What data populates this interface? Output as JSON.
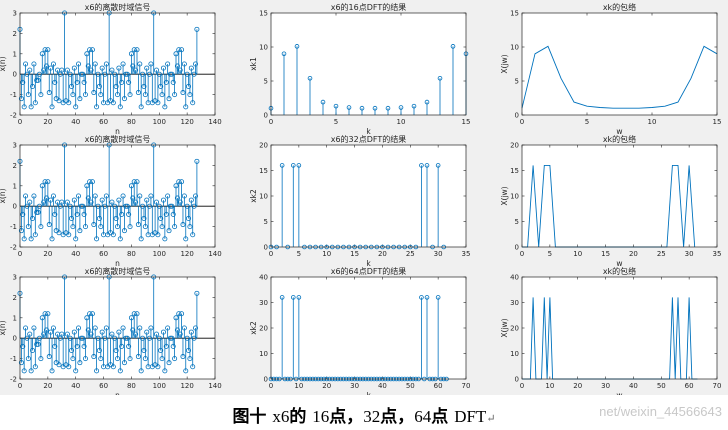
{
  "caption": {
    "lead": "图十",
    "signal": "x6",
    "particle": "的",
    "n1": "16",
    "u1": "点，",
    "n2": "32",
    "u2": "点，",
    "n3": "64",
    "u3": "点",
    "tail": "DFT",
    "return_mark": "↵"
  },
  "watermark": "net/weixin_44566643",
  "colors": {
    "stem": "#0072bd",
    "axes": "#262626",
    "figure_bg": "#f0f0f0"
  },
  "chart_data": [
    {
      "id": "sig1",
      "type": "stem",
      "title": "x6的离散时域信号",
      "xlabel": "n",
      "ylabel": "x(n)",
      "xlim": [
        0,
        140
      ],
      "ylim": [
        -2,
        3
      ],
      "xticks": [
        0,
        20,
        40,
        60,
        80,
        100,
        120,
        140
      ],
      "yticks": [
        -2,
        -1,
        0,
        1,
        2,
        3
      ],
      "x": [
        0,
        1,
        2,
        3,
        4,
        5,
        6,
        7,
        8,
        9,
        10,
        11,
        12,
        13,
        14,
        15,
        16,
        17,
        18,
        19,
        20,
        21,
        22,
        23,
        24,
        25,
        26,
        27,
        28,
        29,
        30,
        31,
        32,
        33,
        34,
        35,
        36,
        37,
        38,
        39,
        40,
        41,
        42,
        43,
        44,
        45,
        46,
        47,
        48,
        49,
        50,
        51,
        52,
        53,
        54,
        55,
        56,
        57,
        58,
        59,
        60,
        61,
        62,
        63,
        64,
        65,
        66,
        67,
        68,
        69,
        70,
        71,
        72,
        73,
        74,
        75,
        76,
        77,
        78,
        79,
        80,
        81,
        82,
        83,
        84,
        85,
        86,
        87,
        88,
        89,
        90,
        91,
        92,
        93,
        94,
        95,
        96,
        97,
        98,
        99,
        100,
        101,
        102,
        103,
        104,
        105,
        106,
        107,
        108,
        109,
        110,
        111,
        112,
        113,
        114,
        115,
        116,
        117,
        118,
        119,
        120,
        121,
        122,
        123,
        124,
        125,
        126,
        127
      ],
      "y": [
        2.2,
        -1.2,
        -0.4,
        -1.6,
        0.5,
        0.0,
        -1.0,
        0.2,
        -1.6,
        -0.6,
        0.5,
        -1.4,
        -0.3,
        -0.3,
        0.0,
        -1.0,
        1.0,
        0.2,
        1.2,
        0.4,
        1.2,
        -0.9,
        0.3,
        -1.6,
        0.5,
        -0.4,
        -1.2,
        0.2,
        -1.3,
        0.0,
        0.2,
        -1.4,
        3.0,
        -1.3,
        0.2,
        -1.4,
        0.0,
        -0.6,
        -1.0,
        0.3,
        -1.6,
        -0.4,
        0.5,
        -1.2,
        0.0,
        0.0,
        -0.4,
        -1.0,
        1.0,
        0.4,
        1.2,
        0.2,
        1.2,
        -0.9,
        0.5,
        -1.6,
        0.0,
        -0.6,
        -1.0,
        0.3,
        -1.4,
        0.0,
        0.5,
        -1.4,
        3.0,
        -1.3,
        0.2,
        -1.4,
        0.0,
        -0.6,
        -1.0,
        0.3,
        -1.6,
        -0.4,
        0.5,
        -1.2,
        0.0,
        0.0,
        -0.4,
        -1.0,
        1.0,
        0.4,
        1.2,
        0.2,
        1.2,
        -0.9,
        0.5,
        -1.6,
        0.0,
        -0.6,
        -1.0,
        0.3,
        -1.4,
        0.0,
        0.5,
        -1.4,
        3.0,
        -1.3,
        0.2,
        -1.4,
        0.0,
        -0.6,
        -1.0,
        0.3,
        -1.6,
        -0.4,
        0.5,
        -1.2,
        0.0,
        0.0,
        -0.4,
        -1.0,
        1.0,
        0.4,
        1.2,
        0.2,
        1.2,
        -0.9,
        0.5,
        -1.6,
        0.0,
        -0.6,
        -1.0,
        0.3,
        -1.4,
        0.0,
        0.5,
        2.2
      ]
    },
    {
      "id": "dft16",
      "type": "stem",
      "title": "x6的16点DFT的结果",
      "xlabel": "k",
      "ylabel": "xk1",
      "xlim": [
        0,
        15
      ],
      "ylim": [
        0,
        15
      ],
      "xticks": [
        0,
        5,
        10,
        15
      ],
      "yticks": [
        0,
        5,
        10,
        15
      ],
      "x": [
        0,
        1,
        2,
        3,
        4,
        5,
        6,
        7,
        8,
        9,
        10,
        11,
        12,
        13,
        14,
        15
      ],
      "y": [
        1.0,
        9.0,
        10.1,
        5.4,
        1.9,
        1.3,
        1.1,
        1.0,
        1.0,
        1.0,
        1.1,
        1.3,
        1.9,
        5.4,
        10.1,
        9.0
      ]
    },
    {
      "id": "env16",
      "type": "line",
      "title": "xk的包络",
      "xlabel": "w",
      "ylabel": "X(jw)",
      "xlim": [
        0,
        15
      ],
      "ylim": [
        0,
        15
      ],
      "xticks": [
        0,
        5,
        10,
        15
      ],
      "yticks": [
        0,
        5,
        10,
        15
      ],
      "x": [
        0,
        1,
        2,
        3,
        4,
        5,
        6,
        7,
        8,
        9,
        10,
        11,
        12,
        13,
        14,
        15
      ],
      "y": [
        1.0,
        9.0,
        10.1,
        5.4,
        1.9,
        1.3,
        1.1,
        1.0,
        1.0,
        1.0,
        1.1,
        1.3,
        1.9,
        5.4,
        10.1,
        9.0
      ]
    },
    {
      "id": "sig2",
      "type": "stem",
      "title": "x6的离散时域信号",
      "xlabel": "n",
      "ylabel": "x(n)",
      "xlim": [
        0,
        140
      ],
      "ylim": [
        -2,
        3
      ],
      "xticks": [
        0,
        20,
        40,
        60,
        80,
        100,
        120,
        140
      ],
      "yticks": [
        -2,
        -1,
        0,
        1,
        2,
        3
      ],
      "x": [
        0,
        1,
        2,
        3,
        4,
        5,
        6,
        7,
        8,
        9,
        10,
        11,
        12,
        13,
        14,
        15,
        16,
        17,
        18,
        19,
        20,
        21,
        22,
        23,
        24,
        25,
        26,
        27,
        28,
        29,
        30,
        31,
        32,
        33,
        34,
        35,
        36,
        37,
        38,
        39,
        40,
        41,
        42,
        43,
        44,
        45,
        46,
        47,
        48,
        49,
        50,
        51,
        52,
        53,
        54,
        55,
        56,
        57,
        58,
        59,
        60,
        61,
        62,
        63,
        64,
        65,
        66,
        67,
        68,
        69,
        70,
        71,
        72,
        73,
        74,
        75,
        76,
        77,
        78,
        79,
        80,
        81,
        82,
        83,
        84,
        85,
        86,
        87,
        88,
        89,
        90,
        91,
        92,
        93,
        94,
        95,
        96,
        97,
        98,
        99,
        100,
        101,
        102,
        103,
        104,
        105,
        106,
        107,
        108,
        109,
        110,
        111,
        112,
        113,
        114,
        115,
        116,
        117,
        118,
        119,
        120,
        121,
        122,
        123,
        124,
        125,
        126,
        127
      ],
      "y": [
        2.2,
        -1.2,
        -0.4,
        -1.6,
        0.5,
        0.0,
        -1.0,
        0.2,
        -1.6,
        -0.6,
        0.5,
        -1.4,
        -0.3,
        -0.3,
        0.0,
        -1.0,
        1.0,
        0.2,
        1.2,
        0.4,
        1.2,
        -0.9,
        0.3,
        -1.6,
        0.5,
        -0.4,
        -1.2,
        0.2,
        -1.3,
        0.0,
        0.2,
        -1.4,
        3.0,
        -1.3,
        0.2,
        -1.4,
        0.0,
        -0.6,
        -1.0,
        0.3,
        -1.6,
        -0.4,
        0.5,
        -1.2,
        0.0,
        0.0,
        -0.4,
        -1.0,
        1.0,
        0.4,
        1.2,
        0.2,
        1.2,
        -0.9,
        0.5,
        -1.6,
        0.0,
        -0.6,
        -1.0,
        0.3,
        -1.4,
        0.0,
        0.5,
        -1.4,
        3.0,
        -1.3,
        0.2,
        -1.4,
        0.0,
        -0.6,
        -1.0,
        0.3,
        -1.6,
        -0.4,
        0.5,
        -1.2,
        0.0,
        0.0,
        -0.4,
        -1.0,
        1.0,
        0.4,
        1.2,
        0.2,
        1.2,
        -0.9,
        0.5,
        -1.6,
        0.0,
        -0.6,
        -1.0,
        0.3,
        -1.4,
        0.0,
        0.5,
        -1.4,
        3.0,
        -1.3,
        0.2,
        -1.4,
        0.0,
        -0.6,
        -1.0,
        0.3,
        -1.6,
        -0.4,
        0.5,
        -1.2,
        0.0,
        0.0,
        -0.4,
        -1.0,
        1.0,
        0.4,
        1.2,
        0.2,
        1.2,
        -0.9,
        0.5,
        -1.6,
        0.0,
        -0.6,
        -1.0,
        0.3,
        -1.4,
        0.0,
        0.5,
        2.2
      ]
    },
    {
      "id": "dft32",
      "type": "stem",
      "title": "x6的32点DFT的结果",
      "xlabel": "k",
      "ylabel": "xk2",
      "xlim": [
        0,
        35
      ],
      "ylim": [
        0,
        20
      ],
      "xticks": [
        0,
        5,
        10,
        15,
        20,
        25,
        30,
        35
      ],
      "yticks": [
        0,
        5,
        10,
        15,
        20
      ],
      "x": [
        0,
        1,
        2,
        3,
        4,
        5,
        6,
        7,
        8,
        9,
        10,
        11,
        12,
        13,
        14,
        15,
        16,
        17,
        18,
        19,
        20,
        21,
        22,
        23,
        24,
        25,
        26,
        27,
        28,
        29,
        30,
        31
      ],
      "y": [
        0,
        0,
        16,
        0,
        16,
        16,
        0,
        0,
        0,
        0,
        0,
        0,
        0,
        0,
        0,
        0,
        0,
        0,
        0,
        0,
        0,
        0,
        0,
        0,
        0,
        0,
        0,
        16,
        16,
        0,
        16,
        0
      ]
    },
    {
      "id": "env32",
      "type": "line",
      "title": "xk的包络",
      "xlabel": "w",
      "ylabel": "X(jw)",
      "xlim": [
        0,
        35
      ],
      "ylim": [
        0,
        20
      ],
      "xticks": [
        0,
        5,
        10,
        15,
        20,
        25,
        30,
        35
      ],
      "yticks": [
        0,
        5,
        10,
        15,
        20
      ],
      "x": [
        0,
        1,
        2,
        3,
        4,
        5,
        6,
        7,
        8,
        9,
        10,
        11,
        12,
        13,
        14,
        15,
        16,
        17,
        18,
        19,
        20,
        21,
        22,
        23,
        24,
        25,
        26,
        27,
        28,
        29,
        30,
        31
      ],
      "y": [
        0,
        0,
        16,
        0,
        16,
        16,
        0,
        0,
        0,
        0,
        0,
        0,
        0,
        0,
        0,
        0,
        0,
        0,
        0,
        0,
        0,
        0,
        0,
        0,
        0,
        0,
        0,
        16,
        16,
        0,
        16,
        0
      ]
    },
    {
      "id": "sig3",
      "type": "stem",
      "title": "x6的离散时域信号",
      "xlabel": "n",
      "ylabel": "x(n)",
      "xlim": [
        0,
        140
      ],
      "ylim": [
        -2,
        3
      ],
      "xticks": [
        0,
        20,
        40,
        60,
        80,
        100,
        120,
        140
      ],
      "yticks": [
        -2,
        -1,
        0,
        1,
        2,
        3
      ],
      "x": [
        0,
        1,
        2,
        3,
        4,
        5,
        6,
        7,
        8,
        9,
        10,
        11,
        12,
        13,
        14,
        15,
        16,
        17,
        18,
        19,
        20,
        21,
        22,
        23,
        24,
        25,
        26,
        27,
        28,
        29,
        30,
        31,
        32,
        33,
        34,
        35,
        36,
        37,
        38,
        39,
        40,
        41,
        42,
        43,
        44,
        45,
        46,
        47,
        48,
        49,
        50,
        51,
        52,
        53,
        54,
        55,
        56,
        57,
        58,
        59,
        60,
        61,
        62,
        63,
        64,
        65,
        66,
        67,
        68,
        69,
        70,
        71,
        72,
        73,
        74,
        75,
        76,
        77,
        78,
        79,
        80,
        81,
        82,
        83,
        84,
        85,
        86,
        87,
        88,
        89,
        90,
        91,
        92,
        93,
        94,
        95,
        96,
        97,
        98,
        99,
        100,
        101,
        102,
        103,
        104,
        105,
        106,
        107,
        108,
        109,
        110,
        111,
        112,
        113,
        114,
        115,
        116,
        117,
        118,
        119,
        120,
        121,
        122,
        123,
        124,
        125,
        126,
        127
      ],
      "y": [
        2.2,
        -1.2,
        -0.4,
        -1.6,
        0.5,
        0.0,
        -1.0,
        0.2,
        -1.6,
        -0.6,
        0.5,
        -1.4,
        -0.3,
        -0.3,
        0.0,
        -1.0,
        1.0,
        0.2,
        1.2,
        0.4,
        1.2,
        -0.9,
        0.3,
        -1.6,
        0.5,
        -0.4,
        -1.2,
        0.2,
        -1.3,
        0.0,
        0.2,
        -1.4,
        3.0,
        -1.3,
        0.2,
        -1.4,
        0.0,
        -0.6,
        -1.0,
        0.3,
        -1.6,
        -0.4,
        0.5,
        -1.2,
        0.0,
        0.0,
        -0.4,
        -1.0,
        1.0,
        0.4,
        1.2,
        0.2,
        1.2,
        -0.9,
        0.5,
        -1.6,
        0.0,
        -0.6,
        -1.0,
        0.3,
        -1.4,
        0.0,
        0.5,
        -1.4,
        3.0,
        -1.3,
        0.2,
        -1.4,
        0.0,
        -0.6,
        -1.0,
        0.3,
        -1.6,
        -0.4,
        0.5,
        -1.2,
        0.0,
        0.0,
        -0.4,
        -1.0,
        1.0,
        0.4,
        1.2,
        0.2,
        1.2,
        -0.9,
        0.5,
        -1.6,
        0.0,
        -0.6,
        -1.0,
        0.3,
        -1.4,
        0.0,
        0.5,
        -1.4,
        3.0,
        -1.3,
        0.2,
        -1.4,
        0.0,
        -0.6,
        -1.0,
        0.3,
        -1.6,
        -0.4,
        0.5,
        -1.2,
        0.0,
        0.0,
        -0.4,
        -1.0,
        1.0,
        0.4,
        1.2,
        0.2,
        1.2,
        -0.9,
        0.5,
        -1.6,
        0.0,
        -0.6,
        -1.0,
        0.3,
        -1.4,
        0.0,
        0.5,
        2.2
      ]
    },
    {
      "id": "dft64",
      "type": "stem",
      "title": "x6的64点DFT的结果",
      "xlabel": "k",
      "ylabel": "xk2",
      "xlim": [
        0,
        70
      ],
      "ylim": [
        0,
        40
      ],
      "xticks": [
        0,
        10,
        20,
        30,
        40,
        50,
        60,
        70
      ],
      "yticks": [
        0,
        10,
        20,
        30,
        40
      ],
      "x": [
        0,
        1,
        2,
        3,
        4,
        5,
        6,
        7,
        8,
        9,
        10,
        11,
        12,
        13,
        14,
        15,
        16,
        17,
        18,
        19,
        20,
        21,
        22,
        23,
        24,
        25,
        26,
        27,
        28,
        29,
        30,
        31,
        32,
        33,
        34,
        35,
        36,
        37,
        38,
        39,
        40,
        41,
        42,
        43,
        44,
        45,
        46,
        47,
        48,
        49,
        50,
        51,
        52,
        53,
        54,
        55,
        56,
        57,
        58,
        59,
        60,
        61,
        62,
        63
      ],
      "y": [
        0,
        0,
        0,
        0,
        32,
        0,
        0,
        0,
        32,
        0,
        32,
        0,
        0,
        0,
        0,
        0,
        0,
        0,
        0,
        0,
        0,
        0,
        0,
        0,
        0,
        0,
        0,
        0,
        0,
        0,
        0,
        0,
        0,
        0,
        0,
        0,
        0,
        0,
        0,
        0,
        0,
        0,
        0,
        0,
        0,
        0,
        0,
        0,
        0,
        0,
        0,
        0,
        0,
        0,
        32,
        0,
        32,
        0,
        0,
        0,
        32,
        0,
        0,
        0
      ]
    },
    {
      "id": "env64",
      "type": "line",
      "title": "xk的包络",
      "xlabel": "w",
      "ylabel": "X(jw)",
      "xlim": [
        0,
        70
      ],
      "ylim": [
        0,
        40
      ],
      "xticks": [
        0,
        10,
        20,
        30,
        40,
        50,
        60,
        70
      ],
      "yticks": [
        0,
        10,
        20,
        30,
        40
      ],
      "x": [
        0,
        1,
        2,
        3,
        4,
        5,
        6,
        7,
        8,
        9,
        10,
        11,
        12,
        13,
        14,
        15,
        16,
        17,
        18,
        19,
        20,
        21,
        22,
        23,
        24,
        25,
        26,
        27,
        28,
        29,
        30,
        31,
        32,
        33,
        34,
        35,
        36,
        37,
        38,
        39,
        40,
        41,
        42,
        43,
        44,
        45,
        46,
        47,
        48,
        49,
        50,
        51,
        52,
        53,
        54,
        55,
        56,
        57,
        58,
        59,
        60,
        61,
        62,
        63
      ],
      "y": [
        0,
        0,
        0,
        0,
        32,
        0,
        0,
        0,
        32,
        0,
        32,
        0,
        0,
        0,
        0,
        0,
        0,
        0,
        0,
        0,
        0,
        0,
        0,
        0,
        0,
        0,
        0,
        0,
        0,
        0,
        0,
        0,
        0,
        0,
        0,
        0,
        0,
        0,
        0,
        0,
        0,
        0,
        0,
        0,
        0,
        0,
        0,
        0,
        0,
        0,
        0,
        0,
        0,
        0,
        32,
        0,
        32,
        0,
        0,
        0,
        32,
        0,
        0,
        0
      ]
    }
  ]
}
